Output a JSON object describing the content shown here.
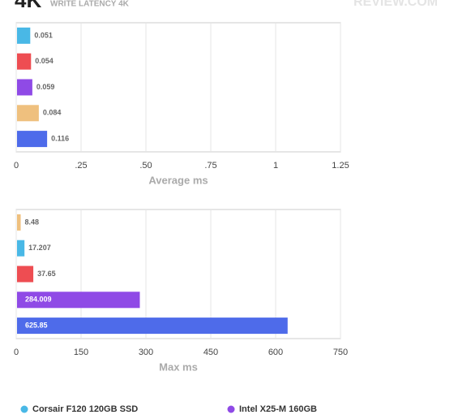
{
  "header": {
    "big": "4K",
    "title": "WRITE LATENCY 4K",
    "logo": "REVIEW.COM"
  },
  "chart_data": [
    {
      "type": "hbar",
      "x_label": "Average ms",
      "values": [
        0.051,
        0.054,
        0.059,
        0.084,
        0.116
      ],
      "colors": [
        "#49b8e6",
        "#ee4d52",
        "#8f4ae6",
        "#efc07e",
        "#4e6bea"
      ],
      "xlim": [
        0,
        1.25
      ],
      "xticks": [
        0,
        {
          "value": 0.25,
          "label": ".25"
        },
        {
          "value": 0.5,
          "label": ".50"
        },
        {
          "value": 0.75,
          "label": ".75"
        },
        1,
        1.25
      ],
      "grid": true
    },
    {
      "type": "hbar",
      "x_label": "Max ms",
      "values": [
        8.48,
        17.207,
        37.65,
        284.009,
        625.85
      ],
      "colors": [
        "#efc07e",
        "#49b8e6",
        "#ee4d52",
        "#8f4ae6",
        "#4e6bea"
      ],
      "xlim": [
        0,
        750
      ],
      "xticks": [
        0,
        150,
        300,
        450,
        600,
        750
      ],
      "grid": true
    }
  ],
  "legend": [
    {
      "name": "Corsair F120 120GB SSD",
      "color": "#49b8e6"
    },
    {
      "name": "Intel X25-M 160GB",
      "color": "#8f4ae6"
    }
  ]
}
